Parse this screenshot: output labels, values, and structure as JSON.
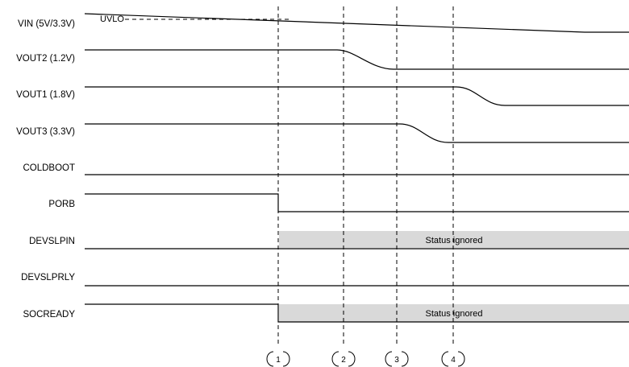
{
  "signals": [
    {
      "id": "vin",
      "label": "VIN (5V/3.3V)"
    },
    {
      "id": "vout2",
      "label": "VOUT2 (1.2V)"
    },
    {
      "id": "vout1",
      "label": "VOUT1 (1.8V)"
    },
    {
      "id": "vout3",
      "label": "VOUT3 (3.3V)"
    },
    {
      "id": "coldboot",
      "label": "COLDBOOT"
    },
    {
      "id": "porb",
      "label": "PORB"
    },
    {
      "id": "devslpin",
      "label": "DEVSLPIN"
    },
    {
      "id": "devslprly",
      "label": "DEVSLPRLY"
    },
    {
      "id": "socready",
      "label": "SOCREADY"
    }
  ],
  "uvlo_label": "UVLO",
  "status_ignored_label": "Status ignored",
  "markers": [
    "1",
    "2",
    "3",
    "4"
  ]
}
